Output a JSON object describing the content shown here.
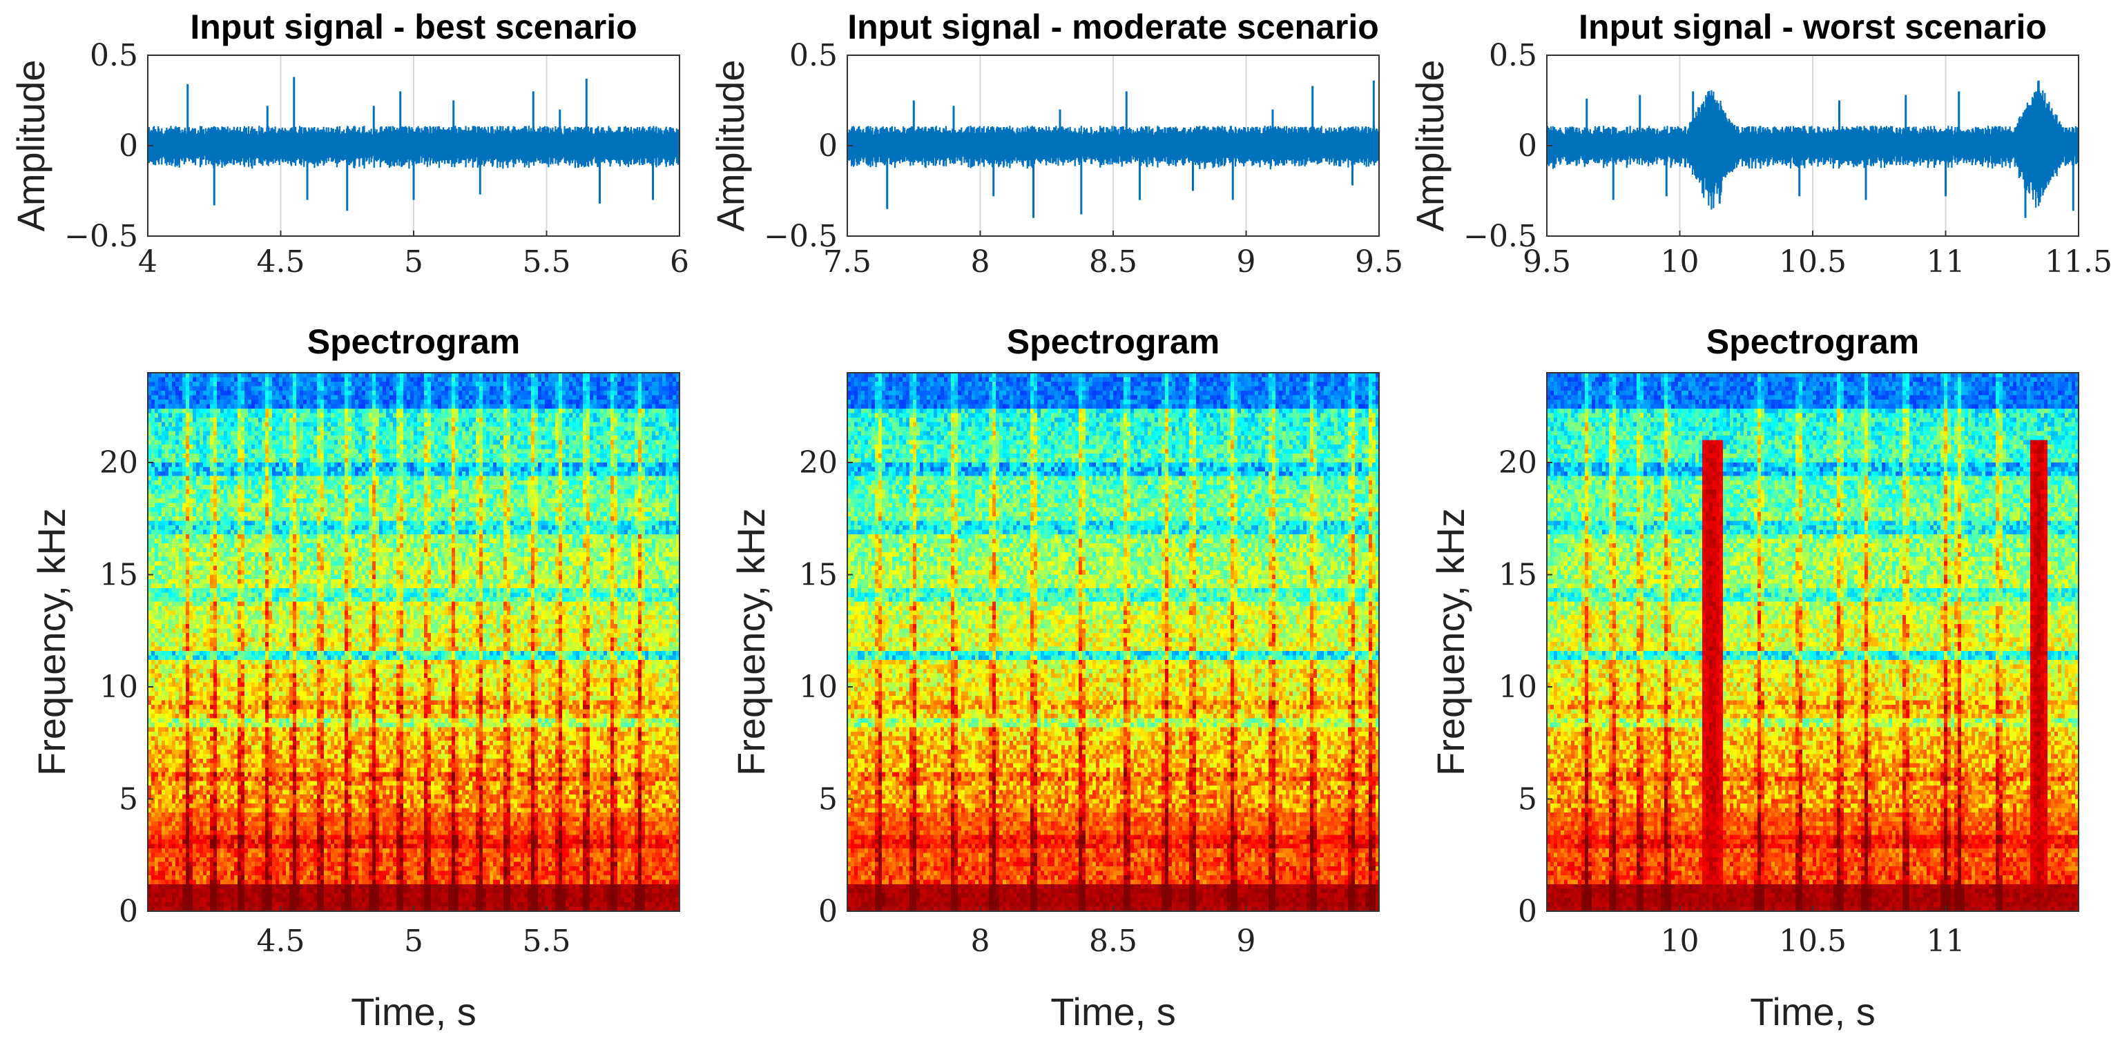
{
  "chart_data": [
    {
      "type": "line",
      "title": "Input signal - best scenario",
      "ylabel": "Amplitude",
      "xlabel": "",
      "xlim": [
        4,
        6
      ],
      "ylim": [
        -0.5,
        0.5
      ],
      "xticks": [
        4,
        4.5,
        5,
        5.5,
        6
      ],
      "xtick_labels": [
        "4",
        "4.5",
        "5",
        "5.5",
        "6"
      ],
      "yticks": [
        -0.5,
        0,
        0.5
      ],
      "ytick_labels": [
        "−0.5",
        "0",
        "0.5"
      ],
      "grid": true,
      "color": "#0072BD",
      "spikes": [
        {
          "x": 4.15,
          "y": 0.34
        },
        {
          "x": 4.25,
          "y": -0.33
        },
        {
          "x": 4.45,
          "y": 0.22
        },
        {
          "x": 4.55,
          "y": 0.38
        },
        {
          "x": 4.6,
          "y": -0.3
        },
        {
          "x": 4.75,
          "y": -0.36
        },
        {
          "x": 4.85,
          "y": 0.22
        },
        {
          "x": 4.95,
          "y": 0.3
        },
        {
          "x": 5.0,
          "y": -0.3
        },
        {
          "x": 5.15,
          "y": 0.25
        },
        {
          "x": 5.25,
          "y": -0.27
        },
        {
          "x": 5.45,
          "y": 0.3
        },
        {
          "x": 5.55,
          "y": 0.2
        },
        {
          "x": 5.65,
          "y": 0.37
        },
        {
          "x": 5.7,
          "y": -0.32
        },
        {
          "x": 5.9,
          "y": -0.3
        }
      ],
      "bursts": []
    },
    {
      "type": "line",
      "title": "Input signal - moderate scenario",
      "ylabel": "Amplitude",
      "xlabel": "",
      "xlim": [
        7.5,
        9.5
      ],
      "ylim": [
        -0.5,
        0.5
      ],
      "xticks": [
        7.5,
        8,
        8.5,
        9,
        9.5
      ],
      "xtick_labels": [
        "7.5",
        "8",
        "8.5",
        "9",
        "9.5"
      ],
      "yticks": [
        -0.5,
        0,
        0.5
      ],
      "ytick_labels": [
        "−0.5",
        "0",
        "0.5"
      ],
      "grid": true,
      "color": "#0072BD",
      "spikes": [
        {
          "x": 7.65,
          "y": -0.35
        },
        {
          "x": 7.75,
          "y": 0.25
        },
        {
          "x": 7.9,
          "y": 0.22
        },
        {
          "x": 8.05,
          "y": -0.28
        },
        {
          "x": 8.2,
          "y": -0.4
        },
        {
          "x": 8.3,
          "y": 0.2
        },
        {
          "x": 8.38,
          "y": -0.38
        },
        {
          "x": 8.55,
          "y": 0.3
        },
        {
          "x": 8.6,
          "y": -0.3
        },
        {
          "x": 8.8,
          "y": -0.25
        },
        {
          "x": 8.95,
          "y": -0.3
        },
        {
          "x": 9.1,
          "y": 0.2
        },
        {
          "x": 9.25,
          "y": 0.33
        },
        {
          "x": 9.4,
          "y": -0.22
        },
        {
          "x": 9.48,
          "y": 0.36
        }
      ],
      "bursts": []
    },
    {
      "type": "line",
      "title": "Input signal - worst scenario",
      "ylabel": "Amplitude",
      "xlabel": "",
      "xlim": [
        9.5,
        11.5
      ],
      "ylim": [
        -0.5,
        0.5
      ],
      "xticks": [
        9.5,
        10,
        10.5,
        11,
        11.5
      ],
      "xtick_labels": [
        "9.5",
        "10",
        "10.5",
        "11",
        "11.5"
      ],
      "yticks": [
        -0.5,
        0,
        0.5
      ],
      "ytick_labels": [
        "−0.5",
        "0",
        "0.5"
      ],
      "grid": true,
      "color": "#0072BD",
      "spikes": [
        {
          "x": 9.65,
          "y": 0.26
        },
        {
          "x": 9.75,
          "y": -0.3
        },
        {
          "x": 9.85,
          "y": 0.28
        },
        {
          "x": 9.95,
          "y": -0.28
        },
        {
          "x": 10.05,
          "y": 0.3
        },
        {
          "x": 10.15,
          "y": -0.32
        },
        {
          "x": 10.45,
          "y": -0.28
        },
        {
          "x": 10.6,
          "y": 0.25
        },
        {
          "x": 10.7,
          "y": -0.3
        },
        {
          "x": 10.85,
          "y": 0.28
        },
        {
          "x": 11.0,
          "y": -0.28
        },
        {
          "x": 11.05,
          "y": 0.3
        },
        {
          "x": 11.3,
          "y": -0.4
        },
        {
          "x": 11.35,
          "y": 0.36
        },
        {
          "x": 11.48,
          "y": -0.36
        }
      ],
      "bursts": [
        {
          "x": 10.12,
          "amp": 0.33
        },
        {
          "x": 11.35,
          "amp": 0.35
        }
      ]
    },
    {
      "type": "heatmap",
      "title": "Spectrogram",
      "ylabel": "Frequency, kHz",
      "xlabel": "Time, s",
      "xlim": [
        4,
        6
      ],
      "ylim": [
        0,
        24
      ],
      "xticks": [
        4.5,
        5,
        5.5
      ],
      "xtick_labels": [
        "4.5",
        "5",
        "5.5"
      ],
      "yticks": [
        0,
        5,
        10,
        15,
        20
      ],
      "ytick_labels": [
        "0",
        "5",
        "10",
        "15",
        "20"
      ],
      "colormap": "jet",
      "impulses": [
        4.15,
        4.25,
        4.35,
        4.45,
        4.55,
        4.65,
        4.75,
        4.85,
        4.95,
        5.05,
        5.15,
        5.25,
        5.35,
        5.45,
        5.55,
        5.65,
        5.75,
        5.85
      ],
      "bursts": []
    },
    {
      "type": "heatmap",
      "title": "Spectrogram",
      "ylabel": "Frequency, kHz",
      "xlabel": "Time, s",
      "xlim": [
        7.5,
        9.5
      ],
      "ylim": [
        0,
        24
      ],
      "xticks": [
        8,
        8.5,
        9
      ],
      "xtick_labels": [
        "8",
        "8.5",
        "9"
      ],
      "yticks": [
        0,
        5,
        10,
        15,
        20
      ],
      "ytick_labels": [
        "0",
        "5",
        "10",
        "15",
        "20"
      ],
      "colormap": "jet",
      "impulses": [
        7.62,
        7.75,
        7.9,
        8.05,
        8.2,
        8.38,
        8.55,
        8.7,
        8.8,
        8.95,
        9.1,
        9.25,
        9.4,
        9.47
      ],
      "bursts": []
    },
    {
      "type": "heatmap",
      "title": "Spectrogram",
      "ylabel": "Frequency, kHz",
      "xlabel": "Time, s",
      "xlim": [
        9.5,
        11.5
      ],
      "ylim": [
        0,
        24
      ],
      "xticks": [
        10,
        10.5,
        11
      ],
      "xtick_labels": [
        "10",
        "10.5",
        "11"
      ],
      "yticks": [
        0,
        5,
        10,
        15,
        20
      ],
      "ytick_labels": [
        "0",
        "5",
        "10",
        "15",
        "20"
      ],
      "colormap": "jet",
      "impulses": [
        9.65,
        9.75,
        9.85,
        9.95,
        10.3,
        10.45,
        10.6,
        10.7,
        10.85,
        11.0,
        11.05,
        11.2
      ],
      "bursts": [
        {
          "x": 10.12,
          "width": 0.08
        },
        {
          "x": 11.35,
          "width": 0.07
        }
      ]
    }
  ]
}
